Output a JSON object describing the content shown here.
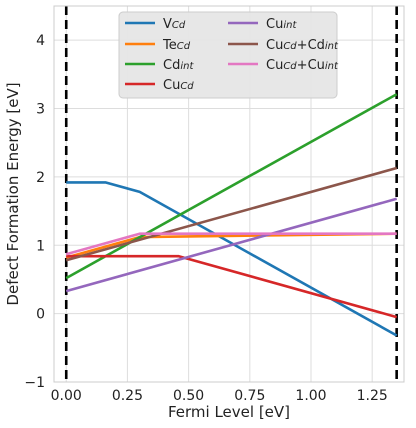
{
  "chart_data": {
    "type": "line",
    "xlabel": "Fermi Level [eV]",
    "ylabel": "Defect Formation Energy [eV]",
    "xlim": [
      -0.05,
      1.38
    ],
    "ylim": [
      -1,
      4.5
    ],
    "xticks": [
      0.0,
      0.25,
      0.5,
      0.75,
      1.0,
      1.25
    ],
    "xtick_labels": [
      "0.00",
      "0.25",
      "0.50",
      "0.75",
      "1.00",
      "1.25"
    ],
    "yticks": [
      -1,
      0,
      1,
      2,
      3,
      4
    ],
    "ytick_labels": [
      "−1",
      "0",
      "1",
      "2",
      "3",
      "4"
    ],
    "grid": true,
    "legend_position": "top-center",
    "vlines": {
      "x": [
        0.0,
        1.35
      ],
      "style": "dashed",
      "color": "#000000"
    },
    "series": [
      {
        "name": "V",
        "sub": "Cd",
        "sub2": "",
        "color": "#1f77b4",
        "x": [
          0.0,
          0.16,
          0.3,
          1.35
        ],
        "y": [
          1.92,
          1.92,
          1.78,
          -0.32
        ]
      },
      {
        "name": "Te",
        "sub": "Cd",
        "sub2": "",
        "color": "#ff7f0e",
        "x": [
          0.0,
          0.3,
          1.35
        ],
        "y": [
          0.82,
          1.12,
          1.17
        ]
      },
      {
        "name": "Cd",
        "sub": "int",
        "sub2": "",
        "color": "#2ca02c",
        "x": [
          0.0,
          1.35
        ],
        "y": [
          0.52,
          3.21
        ]
      },
      {
        "name": "Cu",
        "sub": "Cd",
        "sub2": "",
        "color": "#d62728",
        "x": [
          0.0,
          0.46,
          1.35
        ],
        "y": [
          0.84,
          0.84,
          -0.05
        ]
      },
      {
        "name": "Cu",
        "sub": "int",
        "sub2": "",
        "color": "#9467bd",
        "x": [
          0.0,
          1.35
        ],
        "y": [
          0.33,
          1.68
        ]
      },
      {
        "name": "Cu",
        "sub": "Cd",
        "mid": "+Cd",
        "sub2": "int",
        "color": "#8c564b",
        "x": [
          0.0,
          1.35
        ],
        "y": [
          0.78,
          2.13
        ]
      },
      {
        "name": "Cu",
        "sub": "Cd",
        "mid": "+Cu",
        "sub2": "int",
        "color": "#e377c2",
        "x": [
          0.0,
          0.3,
          1.35
        ],
        "y": [
          0.87,
          1.17,
          1.17
        ]
      }
    ]
  }
}
